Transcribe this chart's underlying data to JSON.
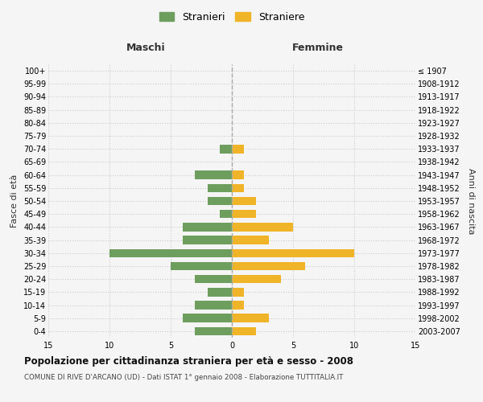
{
  "age_groups": [
    "100+",
    "95-99",
    "90-94",
    "85-89",
    "80-84",
    "75-79",
    "70-74",
    "65-69",
    "60-64",
    "55-59",
    "50-54",
    "45-49",
    "40-44",
    "35-39",
    "30-34",
    "25-29",
    "20-24",
    "15-19",
    "10-14",
    "5-9",
    "0-4"
  ],
  "birth_years": [
    "≤ 1907",
    "1908-1912",
    "1913-1917",
    "1918-1922",
    "1923-1927",
    "1928-1932",
    "1933-1937",
    "1938-1942",
    "1943-1947",
    "1948-1952",
    "1953-1957",
    "1958-1962",
    "1963-1967",
    "1968-1972",
    "1973-1977",
    "1978-1982",
    "1983-1987",
    "1988-1992",
    "1993-1997",
    "1998-2002",
    "2003-2007"
  ],
  "males": [
    0,
    0,
    0,
    0,
    0,
    0,
    1,
    0,
    3,
    2,
    2,
    1,
    4,
    4,
    10,
    5,
    3,
    2,
    3,
    4,
    3
  ],
  "females": [
    0,
    0,
    0,
    0,
    0,
    0,
    1,
    0,
    1,
    1,
    2,
    2,
    5,
    3,
    10,
    6,
    4,
    1,
    1,
    3,
    2
  ],
  "male_color": "#6e9e5e",
  "female_color": "#f0b429",
  "title": "Popolazione per cittadinanza straniera per età e sesso - 2008",
  "subtitle": "COMUNE DI RIVE D'ARCANO (UD) - Dati ISTAT 1° gennaio 2008 - Elaborazione TUTTITALIA.IT",
  "xlabel_left": "Maschi",
  "xlabel_right": "Femmine",
  "ylabel_left": "Fasce di età",
  "ylabel_right": "Anni di nascita",
  "legend_male": "Stranieri",
  "legend_female": "Straniere",
  "xlim": 15,
  "background_color": "#f5f5f5",
  "grid_color": "#cccccc"
}
